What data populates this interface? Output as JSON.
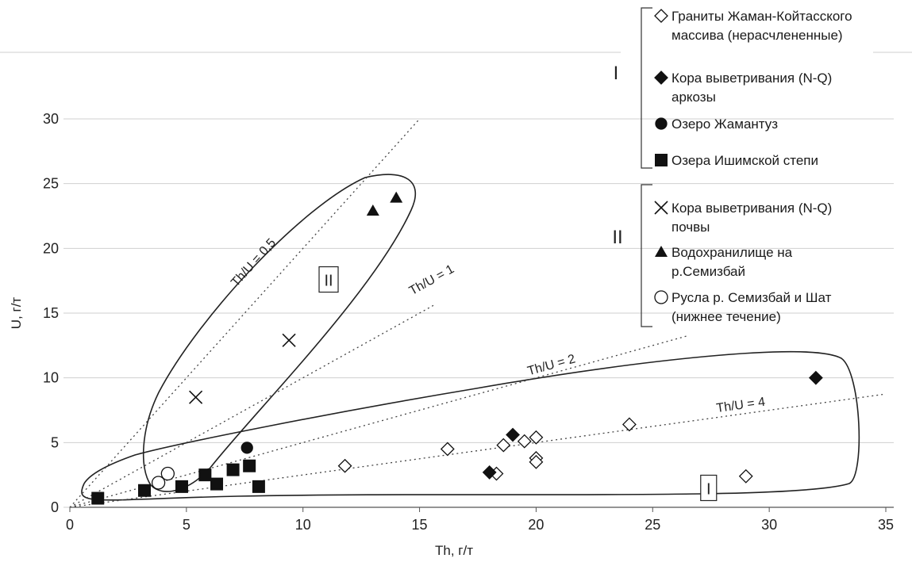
{
  "chart_data": {
    "type": "scatter",
    "title": "",
    "xlabel": "Th, г/т",
    "ylabel": "U, г/т",
    "xlim": [
      0,
      35
    ],
    "ylim": [
      0,
      30
    ],
    "x_ticks": [
      0,
      5,
      10,
      15,
      20,
      25,
      30,
      35
    ],
    "y_ticks": [
      0,
      5,
      10,
      15,
      20,
      25,
      30
    ],
    "grid": "horizontal",
    "legend_position": "top-right",
    "series": [
      {
        "name": "Граниты Жаман-Койтасского массива (нерасчлененные)",
        "marker": "diamond-open",
        "group": "I",
        "points": [
          [
            11.8,
            3.2
          ],
          [
            16.2,
            4.5
          ],
          [
            18.6,
            4.8
          ],
          [
            18.3,
            2.6
          ],
          [
            19.5,
            5.1
          ],
          [
            20.0,
            5.4
          ],
          [
            20.0,
            3.8
          ],
          [
            20.0,
            3.5
          ],
          [
            24.0,
            6.4
          ],
          [
            29.0,
            2.4
          ]
        ]
      },
      {
        "name": "Кора выветривания (N-Q) аркозы",
        "marker": "diamond-filled",
        "group": "I",
        "points": [
          [
            18.0,
            2.7
          ],
          [
            19.0,
            5.6
          ],
          [
            32.0,
            10.0
          ]
        ]
      },
      {
        "name": "Озеро Жамантуз",
        "marker": "circle-filled",
        "group": "I",
        "points": [
          [
            7.6,
            4.6
          ]
        ]
      },
      {
        "name": "Озера Ишимской степи",
        "marker": "square-filled",
        "group": "I",
        "points": [
          [
            1.2,
            0.7
          ],
          [
            3.2,
            1.3
          ],
          [
            4.8,
            1.6
          ],
          [
            5.8,
            2.5
          ],
          [
            6.3,
            1.8
          ],
          [
            7.0,
            2.9
          ],
          [
            7.7,
            3.2
          ],
          [
            8.1,
            1.6
          ]
        ]
      },
      {
        "name": "Кора выветривания (N-Q) почвы",
        "marker": "x",
        "group": "II",
        "points": [
          [
            5.4,
            8.5
          ],
          [
            9.4,
            12.9
          ]
        ]
      },
      {
        "name": "Водохранилище на р.Семизбай",
        "marker": "triangle-filled",
        "group": "II",
        "points": [
          [
            13.0,
            22.9
          ],
          [
            14.0,
            23.9
          ]
        ]
      },
      {
        "name": "Русла р. Семизбай и Шат (нижнее течение)",
        "marker": "circle-open",
        "group": "II",
        "points": [
          [
            3.8,
            1.9
          ],
          [
            4.2,
            2.6
          ]
        ]
      }
    ],
    "reference_lines": [
      {
        "label": "Th/U = 0,5",
        "slope": 2
      },
      {
        "label": "Th/U = 1",
        "slope": 1
      },
      {
        "label": "Th/U = 2",
        "slope": 0.5
      },
      {
        "label": "Th/U = 4",
        "slope": 0.25
      }
    ],
    "field_labels": [
      "II",
      "I"
    ],
    "legend_groups": [
      {
        "label": "I",
        "entries": [
          "Граниты Жаман-Койтасского массива (нерасчлененные)",
          "Кора выветривания (N-Q) аркозы",
          "Озеро Жамантуз",
          "Озера Ишимской степи"
        ]
      },
      {
        "label": "II",
        "entries": [
          "Кора выветривания (N-Q) почвы",
          "Водохранилище на р.Семизбай",
          "Русла р. Семизбай и Шат (нижнее течение)"
        ]
      }
    ],
    "legend_text_lines": {
      "Граниты Жаман-Койтасского массива (нерасчлененные)": [
        "Граниты Жаман-Койтасского",
        "массива (нерасчлененные)"
      ],
      "Кора выветривания (N-Q) аркозы": [
        "Кора выветривания (N-Q)",
        "аркозы"
      ],
      "Озеро Жамантуз": [
        "Озеро Жамантуз"
      ],
      "Озера Ишимской степи": [
        "Озера Ишимской степи"
      ],
      "Кора выветривания (N-Q) почвы": [
        "Кора выветривания (N-Q)",
        "почвы"
      ],
      "Водохранилище на р.Семизбай": [
        "Водохранилище на",
        "р.Семизбай"
      ],
      "Русла р. Семизбай и Шат (нижнее течение)": [
        "Русла р. Семизбай и Шат",
        "(нижнее течение)"
      ]
    }
  }
}
